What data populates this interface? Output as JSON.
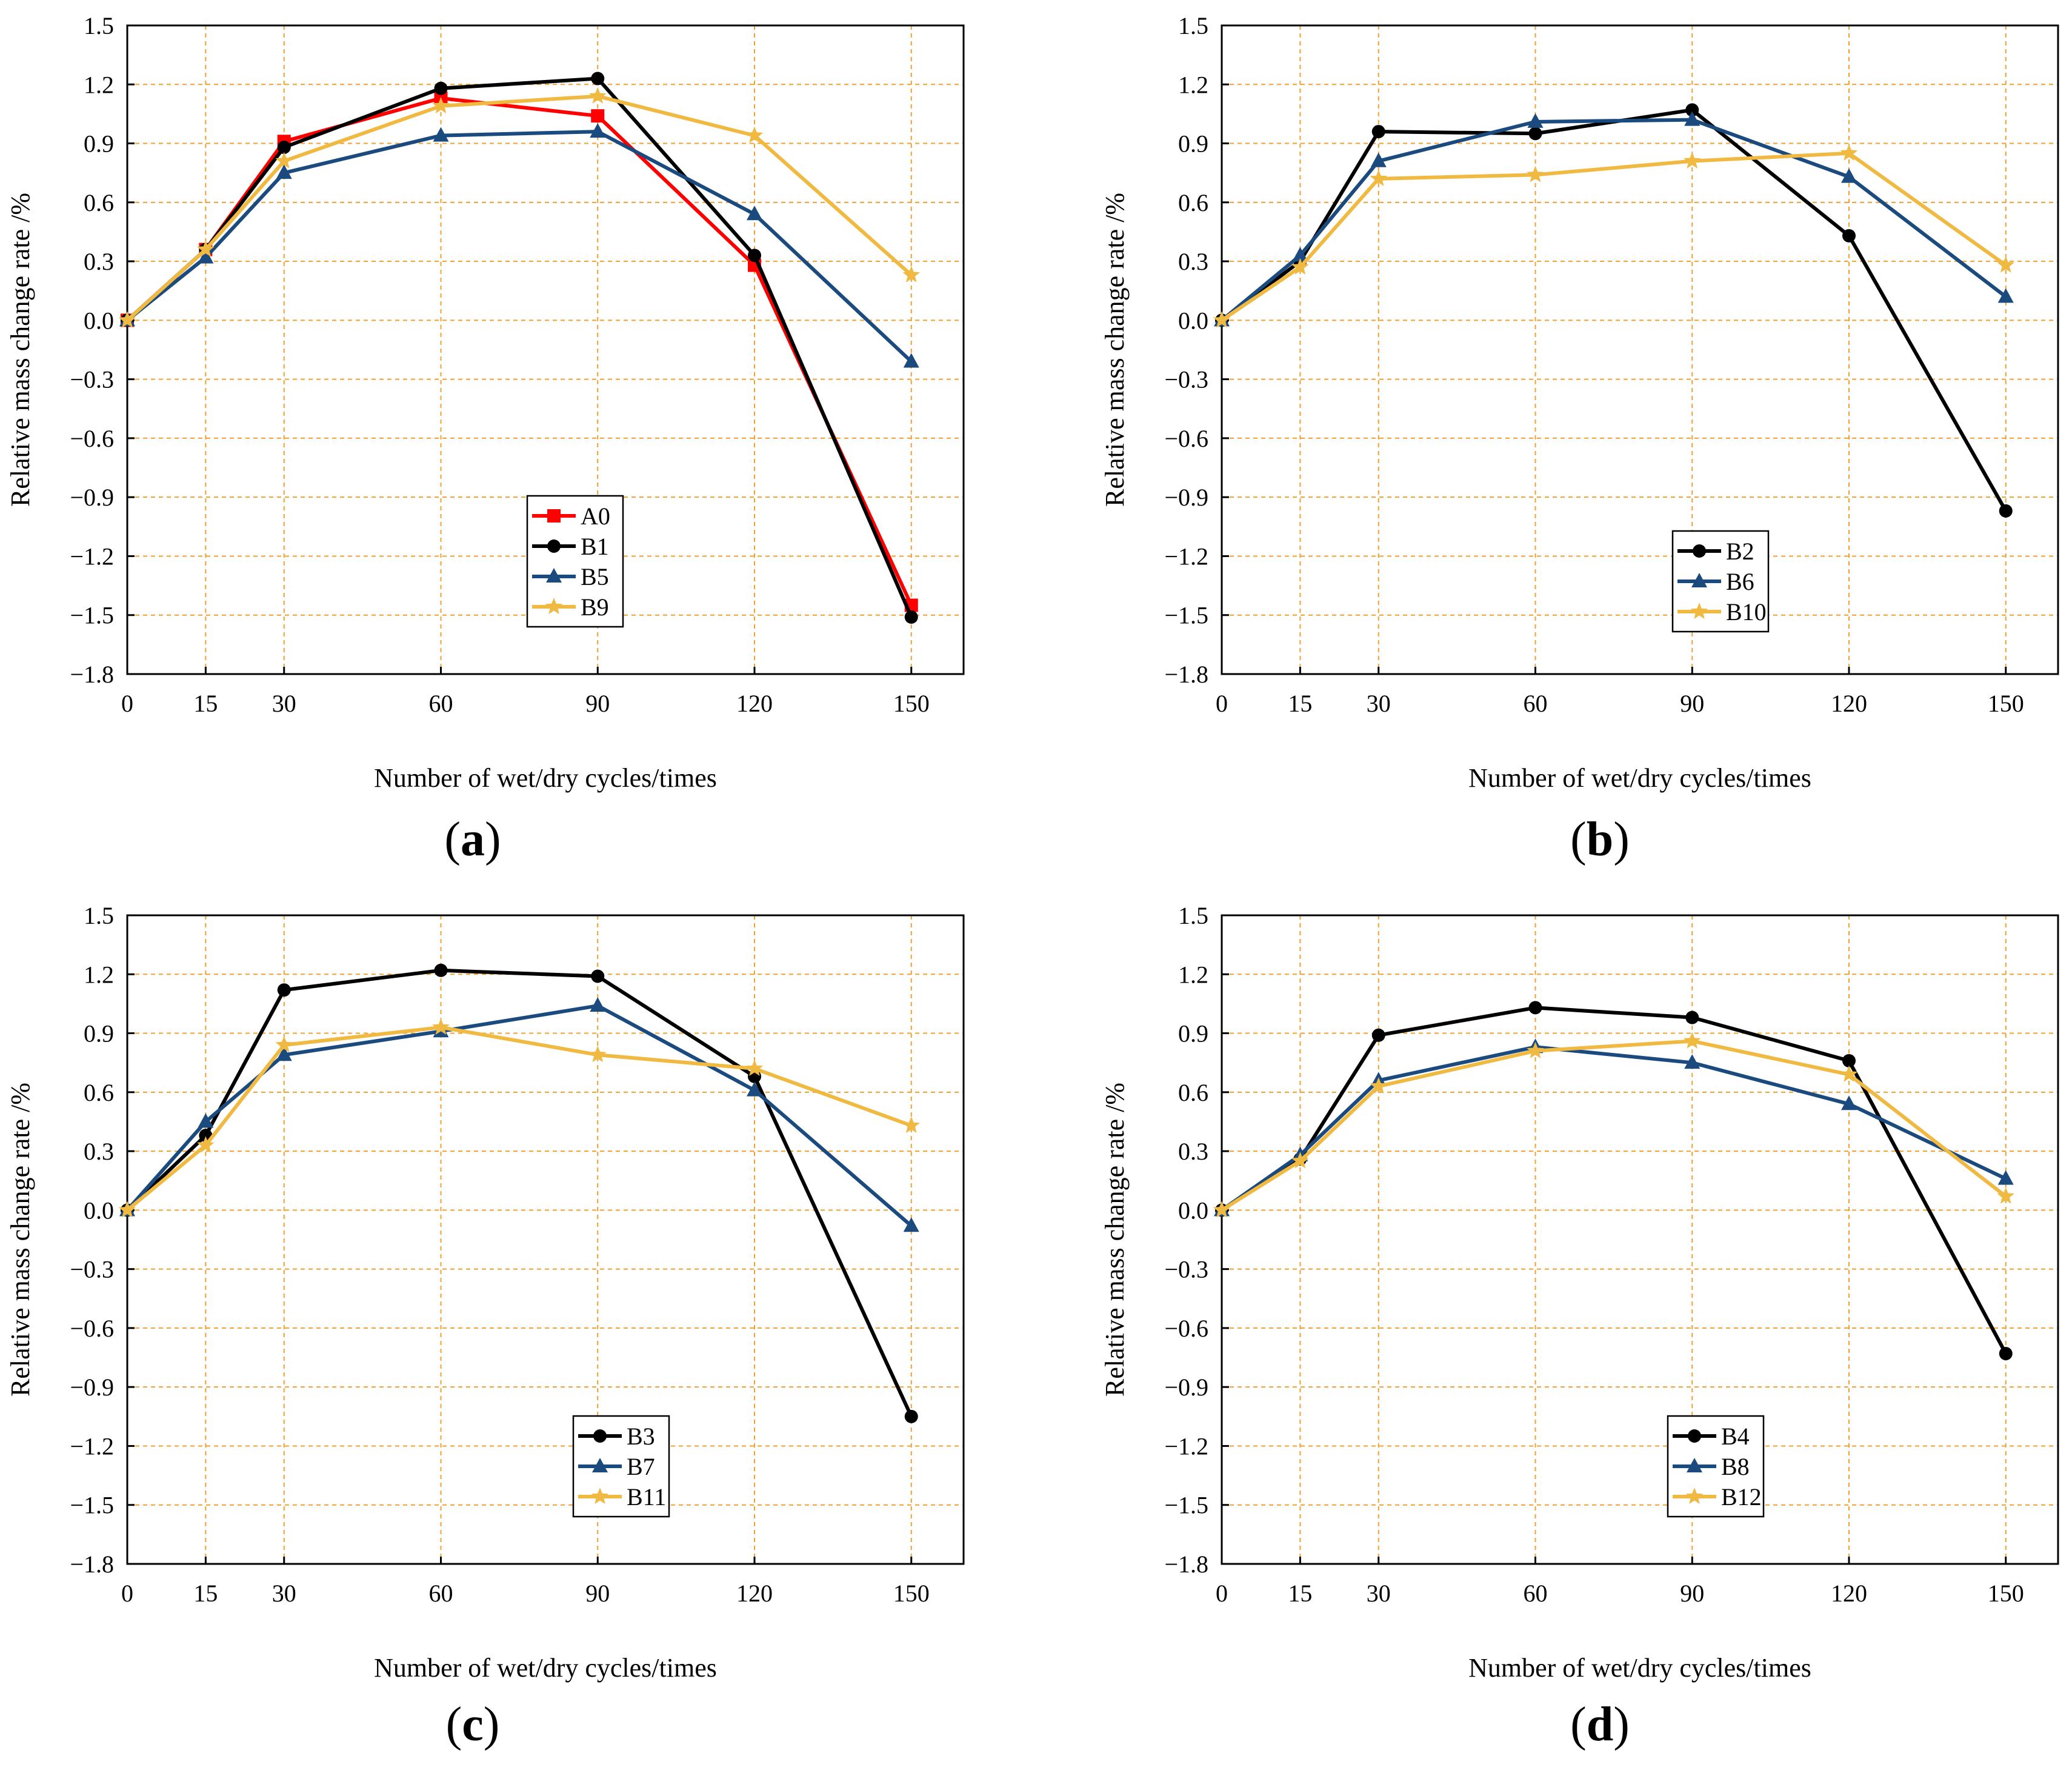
{
  "figure": {
    "panels": [
      {
        "id": "a",
        "label": "a"
      },
      {
        "id": "b",
        "label": "b"
      },
      {
        "id": "c",
        "label": "c"
      },
      {
        "id": "d",
        "label": "d"
      }
    ]
  },
  "chart_data": [
    {
      "type": "line",
      "panel": "a",
      "xlabel": "Number of wet/dry cycles/times",
      "ylabel": "Relative mass change rate /%",
      "x": [
        0,
        15,
        30,
        60,
        90,
        120,
        150
      ],
      "xticks": [
        "0",
        "15",
        "30",
        "60",
        "90",
        "120",
        "150"
      ],
      "yticks": [
        "1.5",
        "1.2",
        "0.9",
        "0.6",
        "0.3",
        "0.0",
        "-0.3",
        "-0.6",
        "-0.9",
        "-1.2",
        "-1.5",
        "-1.8"
      ],
      "xlim": [
        0,
        160
      ],
      "ylim": [
        -1.8,
        1.5
      ],
      "grid": true,
      "legend_position": "lower-center",
      "series": [
        {
          "name": "A0",
          "color": "#ff0000",
          "marker": "square",
          "values": [
            0.0,
            0.36,
            0.91,
            1.13,
            1.04,
            0.28,
            -1.45
          ]
        },
        {
          "name": "B1",
          "color": "#000000",
          "marker": "circle",
          "values": [
            0.0,
            0.36,
            0.88,
            1.18,
            1.23,
            0.33,
            -1.51
          ]
        },
        {
          "name": "B5",
          "color": "#1a4a7e",
          "marker": "triangle",
          "values": [
            0.0,
            0.32,
            0.75,
            0.94,
            0.96,
            0.54,
            -0.21
          ]
        },
        {
          "name": "B9",
          "color": "#f0b942",
          "marker": "star",
          "values": [
            0.0,
            0.36,
            0.81,
            1.09,
            1.14,
            0.94,
            0.23
          ]
        }
      ]
    },
    {
      "type": "line",
      "panel": "b",
      "xlabel": "Number of wet/dry cycles/times",
      "ylabel": "Relative mass change rate /%",
      "x": [
        0,
        15,
        30,
        60,
        90,
        120,
        150
      ],
      "xticks": [
        "0",
        "15",
        "30",
        "60",
        "90",
        "120",
        "150"
      ],
      "yticks": [
        "1.5",
        "1.2",
        "0.9",
        "0.6",
        "0.3",
        "0.0",
        "-0.3",
        "-0.6",
        "-0.9",
        "-1.2",
        "-1.5",
        "-1.8"
      ],
      "xlim": [
        0,
        160
      ],
      "ylim": [
        -1.8,
        1.5
      ],
      "grid": true,
      "legend_position": "lower-center",
      "series": [
        {
          "name": "B2",
          "color": "#000000",
          "marker": "circle",
          "values": [
            0.0,
            0.3,
            0.96,
            0.95,
            1.07,
            0.43,
            -0.97
          ]
        },
        {
          "name": "B6",
          "color": "#1a4a7e",
          "marker": "triangle",
          "values": [
            0.0,
            0.33,
            0.81,
            1.01,
            1.02,
            0.73,
            0.12
          ]
        },
        {
          "name": "B10",
          "color": "#f0b942",
          "marker": "star",
          "values": [
            0.0,
            0.27,
            0.72,
            0.74,
            0.81,
            0.85,
            0.28
          ]
        }
      ]
    },
    {
      "type": "line",
      "panel": "c",
      "xlabel": "Number of wet/dry cycles/times",
      "ylabel": "Relative mass change rate /%",
      "x": [
        0,
        15,
        30,
        60,
        90,
        120,
        150
      ],
      "xticks": [
        "0",
        "15",
        "30",
        "60",
        "90",
        "120",
        "150"
      ],
      "yticks": [
        "1.5",
        "1.2",
        "0.9",
        "0.6",
        "0.3",
        "0.0",
        "-0.3",
        "-0.6",
        "-0.9",
        "-1.2",
        "-1.5",
        "-1.8"
      ],
      "xlim": [
        0,
        160
      ],
      "ylim": [
        -1.8,
        1.5
      ],
      "grid": true,
      "legend_position": "lower-center",
      "series": [
        {
          "name": "B3",
          "color": "#000000",
          "marker": "circle",
          "values": [
            0.0,
            0.38,
            1.12,
            1.22,
            1.19,
            0.68,
            -1.05
          ]
        },
        {
          "name": "B7",
          "color": "#1a4a7e",
          "marker": "triangle",
          "values": [
            0.0,
            0.45,
            0.79,
            0.91,
            1.04,
            0.61,
            -0.08
          ]
        },
        {
          "name": "B11",
          "color": "#f0b942",
          "marker": "star",
          "values": [
            0.0,
            0.33,
            0.84,
            0.93,
            0.79,
            0.72,
            0.43
          ]
        }
      ]
    },
    {
      "type": "line",
      "panel": "d",
      "xlabel": "Number of wet/dry cycles/times",
      "ylabel": "Relative mass change rate /%",
      "x": [
        0,
        15,
        30,
        60,
        90,
        120,
        150
      ],
      "xticks": [
        "0",
        "15",
        "30",
        "60",
        "90",
        "120",
        "150"
      ],
      "yticks": [
        "1.5",
        "1.2",
        "0.9",
        "0.6",
        "0.3",
        "0.0",
        "-0.3",
        "-0.6",
        "-0.9",
        "-1.2",
        "-1.5",
        "-1.8"
      ],
      "xlim": [
        0,
        160
      ],
      "ylim": [
        -1.8,
        1.5
      ],
      "grid": true,
      "legend_position": "lower-center",
      "series": [
        {
          "name": "B4",
          "color": "#000000",
          "marker": "circle",
          "values": [
            0.0,
            0.26,
            0.89,
            1.03,
            0.98,
            0.76,
            -0.73
          ]
        },
        {
          "name": "B8",
          "color": "#1a4a7e",
          "marker": "triangle",
          "values": [
            0.0,
            0.28,
            0.66,
            0.83,
            0.75,
            0.54,
            0.16
          ]
        },
        {
          "name": "B12",
          "color": "#f0b942",
          "marker": "star",
          "values": [
            0.0,
            0.25,
            0.63,
            0.81,
            0.86,
            0.69,
            0.07
          ]
        }
      ]
    }
  ]
}
